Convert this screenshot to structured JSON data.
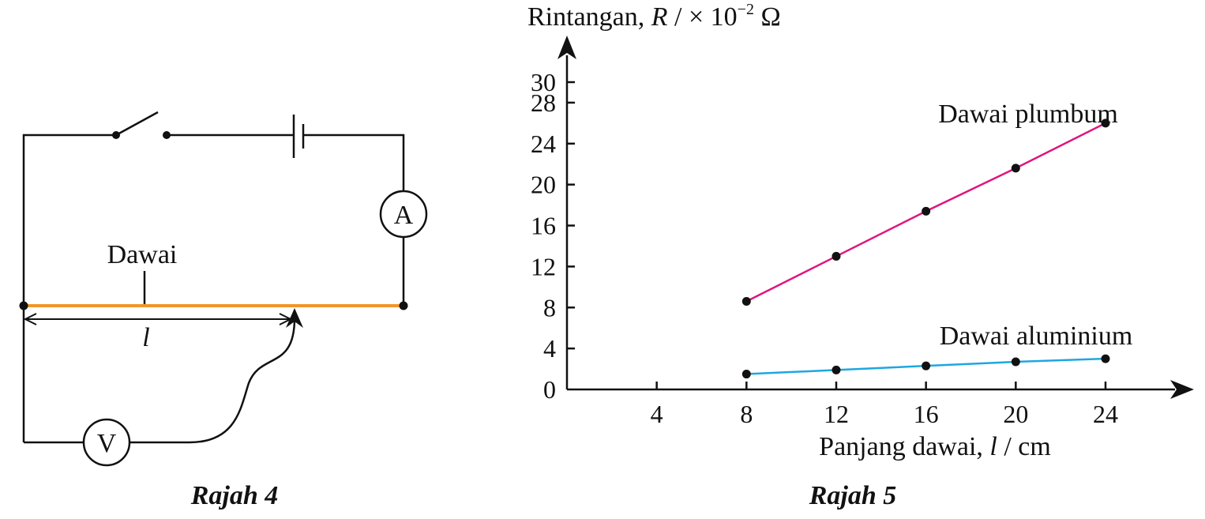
{
  "figure4": {
    "caption": "Rajah 4",
    "wire_label": "Dawai",
    "length_label": "l",
    "ammeter_symbol": "A",
    "voltmeter_symbol": "V",
    "wire_color": "#f0962a"
  },
  "figure5": {
    "caption": "Rajah 5"
  },
  "chart_data": {
    "type": "line",
    "title": "",
    "ylabel": {
      "text": "Rintangan, ",
      "symbol": "R",
      "unit_pre": " / × 10",
      "exponent": "−2",
      "unit_post": " Ω"
    },
    "xlabel": {
      "text": "Panjang dawai, ",
      "symbol": "l",
      "unit": " / cm"
    },
    "xlim": [
      0,
      26.5
    ],
    "ylim": [
      0,
      33
    ],
    "x_ticks": [
      4,
      8,
      12,
      16,
      20,
      24
    ],
    "y_ticks": [
      0,
      4,
      8,
      12,
      16,
      20,
      24,
      28,
      30
    ],
    "grid": false,
    "series": [
      {
        "name": "Dawai plumbum",
        "color": "#e0147f",
        "x": [
          8,
          12,
          16,
          20,
          24
        ],
        "y": [
          8.6,
          13.0,
          17.4,
          21.6,
          26.0
        ]
      },
      {
        "name": "Dawai aluminium",
        "color": "#1ea7e1",
        "x": [
          8,
          12,
          16,
          20,
          24
        ],
        "y": [
          1.5,
          1.9,
          2.3,
          2.7,
          3.0
        ]
      }
    ]
  }
}
